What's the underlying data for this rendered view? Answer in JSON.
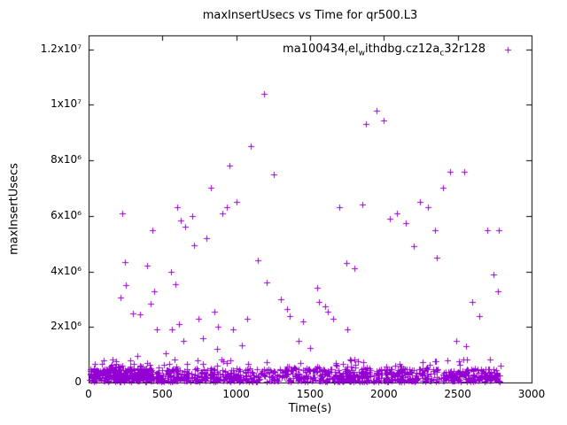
{
  "title": "maxInsertUsecs vs Time for qr500.L3",
  "x_axis": {
    "label": "Time(s)",
    "tick_labels": [
      "0",
      "500",
      "1000",
      "1500",
      "2000",
      "2500",
      "3000"
    ],
    "tick_values": [
      0,
      500,
      1000,
      1500,
      2000,
      2500,
      3000
    ]
  },
  "y_axis": {
    "label": "maxInsertUsecs",
    "tick_labels": [
      "0",
      "2x10⁶",
      "4x10⁶",
      "6x10⁶",
      "8x10⁶",
      "1x10⁷",
      "1.2x10⁷"
    ],
    "tick_values": [
      0,
      2000000,
      4000000,
      6000000,
      8000000,
      10000000,
      12000000
    ]
  },
  "legend": {
    "plain": "ma100434_rel_withdbg.cz12a_c32r128",
    "parts": [
      {
        "text": "ma100434"
      },
      {
        "text": "r",
        "sub": true
      },
      {
        "text": "el"
      },
      {
        "text": "w",
        "sub": true
      },
      {
        "text": "ithdbg.cz12a"
      },
      {
        "text": "c",
        "sub": true
      },
      {
        "text": "32r128"
      }
    ]
  },
  "chart_data": {
    "type": "scatter",
    "marker": "plus",
    "marker_color": "#9400d3",
    "title": "maxInsertUsecs vs Time for qr500.L3",
    "xlabel": "Time(s)",
    "ylabel": "maxInsertUsecs",
    "xlim": [
      0,
      3000
    ],
    "ylim": [
      0,
      12500000
    ],
    "grid": false,
    "legend_position": "top-right",
    "outliers": [
      [
        230,
        6100000
      ],
      [
        245,
        4350000
      ],
      [
        250,
        3500000
      ],
      [
        215,
        3050000
      ],
      [
        300,
        2500000
      ],
      [
        345,
        2450000
      ],
      [
        330,
        950000
      ],
      [
        395,
        4200000
      ],
      [
        430,
        5500000
      ],
      [
        445,
        3300000
      ],
      [
        420,
        2850000
      ],
      [
        460,
        1900000
      ],
      [
        520,
        1050000
      ],
      [
        555,
        4000000
      ],
      [
        565,
        1900000
      ],
      [
        585,
        3550000
      ],
      [
        600,
        6300000
      ],
      [
        610,
        2100000
      ],
      [
        625,
        5850000
      ],
      [
        655,
        5600000
      ],
      [
        640,
        1500000
      ],
      [
        700,
        6000000
      ],
      [
        715,
        4950000
      ],
      [
        745,
        2300000
      ],
      [
        775,
        1600000
      ],
      [
        800,
        5200000
      ],
      [
        830,
        7000000
      ],
      [
        850,
        2550000
      ],
      [
        870,
        1200000
      ],
      [
        875,
        2000000
      ],
      [
        905,
        6100000
      ],
      [
        935,
        6300000
      ],
      [
        955,
        7800000
      ],
      [
        980,
        1900000
      ],
      [
        1000,
        6500000
      ],
      [
        1040,
        1350000
      ],
      [
        1075,
        2300000
      ],
      [
        1100,
        8500000
      ],
      [
        1145,
        4400000
      ],
      [
        1185,
        10400000
      ],
      [
        1205,
        3600000
      ],
      [
        1255,
        7500000
      ],
      [
        1300,
        3000000
      ],
      [
        1345,
        2650000
      ],
      [
        1360,
        2400000
      ],
      [
        1420,
        1500000
      ],
      [
        1450,
        2200000
      ],
      [
        1500,
        1250000
      ],
      [
        1545,
        3400000
      ],
      [
        1560,
        2900000
      ],
      [
        1600,
        2750000
      ],
      [
        1620,
        2550000
      ],
      [
        1655,
        2300000
      ],
      [
        1700,
        6300000
      ],
      [
        1745,
        4300000
      ],
      [
        1750,
        1900000
      ],
      [
        1800,
        4100000
      ],
      [
        1855,
        6400000
      ],
      [
        1880,
        9300000
      ],
      [
        1950,
        9800000
      ],
      [
        2000,
        9450000
      ],
      [
        2040,
        5900000
      ],
      [
        2090,
        6100000
      ],
      [
        2145,
        5750000
      ],
      [
        2200,
        4900000
      ],
      [
        2245,
        6500000
      ],
      [
        2300,
        6300000
      ],
      [
        2345,
        5500000
      ],
      [
        2360,
        4500000
      ],
      [
        2400,
        7000000
      ],
      [
        2450,
        7600000
      ],
      [
        2490,
        1500000
      ],
      [
        2545,
        7600000
      ],
      [
        2555,
        1300000
      ],
      [
        2600,
        2900000
      ],
      [
        2645,
        2400000
      ],
      [
        2700,
        5500000
      ],
      [
        2740,
        3900000
      ],
      [
        2770,
        3300000
      ],
      [
        2780,
        5500000
      ]
    ],
    "baseline": {
      "description": "dense band of samples near zero across full time range",
      "count": 1100,
      "x_min": 5,
      "x_max": 2790,
      "y_min": 40000,
      "y_max": 500000,
      "skew": 1.4,
      "spike_fraction": 0.05,
      "spike_y_max": 850000,
      "early": {
        "x_max": 420,
        "count": 180,
        "y_min": 150000,
        "y_max": 780000
      },
      "seed": 20240701
    }
  }
}
